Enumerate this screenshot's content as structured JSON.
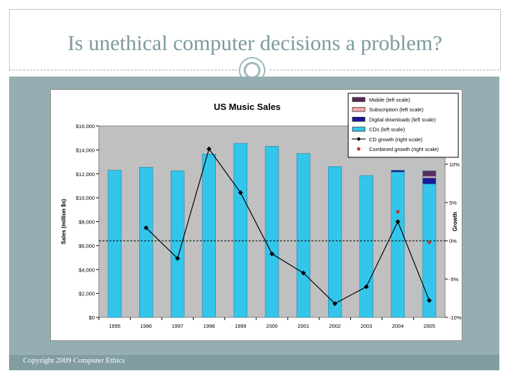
{
  "slide": {
    "title": "Is unethical computer decisions a problem?",
    "footer": "Copyright 2009 Computer Ethics"
  },
  "colors": {
    "background_accent": "#95aeb2",
    "title_color": "#7d9aa0",
    "cds": "#33c6ea",
    "digital": "#1a1a99",
    "subscription": "#f2a8a8",
    "mobile": "#5c2e5c",
    "plot_bg": "#c0c0c0"
  },
  "chart_data": {
    "type": "bar",
    "title": "US Music Sales",
    "xlabel": "",
    "ylabel": "Sales (million $s)",
    "y2label": "Growth",
    "categories": [
      "1995",
      "1996",
      "1997",
      "1998",
      "1999",
      "2000",
      "2001",
      "2002",
      "2003",
      "2004",
      "2005"
    ],
    "ylim": [
      0,
      16000
    ],
    "y2lim": [
      -10,
      15
    ],
    "y_ticks": [
      "$0",
      "$2,000",
      "$4,000",
      "$6,000",
      "$8,000",
      "$10,000",
      "$12,000",
      "$14,000",
      "$16,000"
    ],
    "y2_ticks": [
      "-10%",
      "-5%",
      "0%",
      "5%",
      "10%"
    ],
    "stacked": true,
    "series": [
      {
        "name": "Mobile (left scale)",
        "axis": "left",
        "values": [
          0,
          0,
          0,
          0,
          0,
          0,
          0,
          0,
          0,
          0,
          450
        ]
      },
      {
        "name": "Subscription (left scale)",
        "axis": "left",
        "values": [
          0,
          0,
          0,
          0,
          0,
          0,
          0,
          0,
          0,
          0,
          150
        ]
      },
      {
        "name": "Digital downloads (left scale)",
        "axis": "left",
        "values": [
          0,
          0,
          0,
          0,
          0,
          0,
          0,
          0,
          0,
          150,
          500
        ]
      },
      {
        "name": "CDs (left scale)",
        "axis": "left",
        "values": [
          12300,
          12550,
          12250,
          13650,
          14550,
          14300,
          13700,
          12600,
          11850,
          12150,
          11150
        ]
      },
      {
        "name": "CD growth  (right scale)",
        "axis": "right",
        "type": "line",
        "values": [
          null,
          1.7,
          -2.3,
          12.0,
          6.3,
          -1.7,
          -4.2,
          -8.2,
          -6.0,
          2.5,
          -7.8
        ]
      },
      {
        "name": "Combined growth (right scale)",
        "axis": "right",
        "type": "scatter",
        "values": [
          null,
          null,
          null,
          null,
          null,
          null,
          null,
          null,
          null,
          3.8,
          -0.2
        ]
      }
    ],
    "legend": "top-right",
    "grid": false
  }
}
